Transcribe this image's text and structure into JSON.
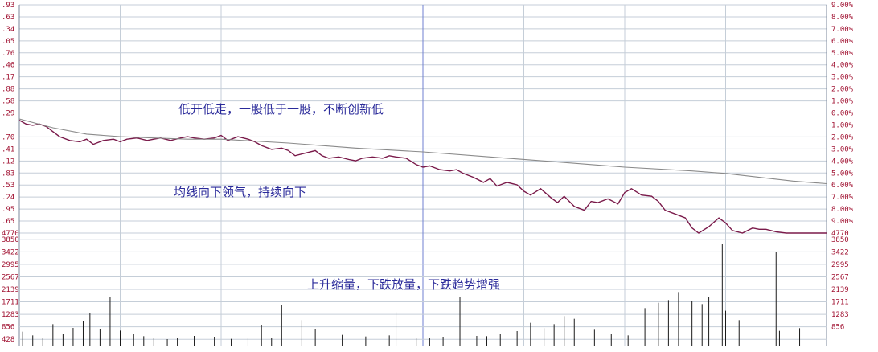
{
  "chart_data": {
    "type": "line",
    "title": "",
    "annotations": [
      "低开低走，一股低于一股，不断创新低",
      "均线向下领气，持续向下",
      "上升缩量，下跌放量，下跌趋势增强"
    ],
    "y_left_ticks": [
      ".93",
      ".63",
      ".34",
      ".05",
      ".76",
      ".46",
      ".17",
      ".88",
      ".58",
      ".29",
      "",
      ".70",
      ".41",
      ".12",
      ".83",
      ".53",
      ".24",
      ".95",
      ".65",
      "4770"
    ],
    "y_right_ticks": [
      "9.00%",
      "8.00%",
      "7.00%",
      "6.00%",
      "5.00%",
      "4.00%",
      "3.00%",
      "2.00%",
      "1.00%",
      "0.00%",
      "1.00%",
      "2.00%",
      "3.00%",
      "4.00%",
      "5.00%",
      "6.00%",
      "7.00%",
      "8.00%",
      "9.00%",
      "4770"
    ],
    "volume_left_ticks": [
      "3850",
      "3422",
      "2995",
      "2567",
      "2139",
      "1711",
      "1283",
      "856",
      "428"
    ],
    "volume_right_ticks": [
      "3850",
      "3422",
      "2995",
      "2567",
      "2139",
      "1711",
      "1283",
      "856"
    ],
    "ylim_percent": [
      -9,
      9
    ],
    "x_range": [
      0,
      240
    ],
    "grid": true,
    "series": [
      {
        "color": "#7a1a4a",
        "x": [
          0,
          2,
          4,
          6,
          8,
          10,
          12,
          15,
          18,
          20,
          22,
          25,
          28,
          30,
          32,
          35,
          38,
          40,
          42,
          45,
          48,
          50,
          52,
          55,
          58,
          60,
          62,
          65,
          68,
          70,
          72,
          75,
          78,
          80,
          82,
          85,
          88,
          90,
          92,
          95,
          98,
          100,
          102,
          105,
          108,
          110,
          112,
          115,
          118,
          120,
          122,
          125,
          128,
          130,
          132,
          135,
          138,
          140,
          142,
          145,
          148,
          150,
          152,
          155,
          158,
          160,
          162,
          165,
          168,
          170,
          172,
          175,
          178,
          180,
          182,
          185,
          188,
          190,
          192,
          195,
          198,
          200,
          202,
          205,
          208,
          210,
          212,
          215,
          218,
          220,
          222,
          225,
          228,
          230,
          240
        ],
        "y": [
          -0.1,
          -0.4,
          -0.5,
          -0.4,
          -0.6,
          -1.0,
          -1.4,
          -1.7,
          -1.8,
          -1.6,
          -2.0,
          -1.7,
          -1.6,
          -1.8,
          -1.6,
          -1.5,
          -1.7,
          -1.6,
          -1.5,
          -1.7,
          -1.5,
          -1.4,
          -1.5,
          -1.6,
          -1.5,
          -1.3,
          -1.7,
          -1.4,
          -1.6,
          -1.8,
          -2.1,
          -2.4,
          -2.3,
          -2.5,
          -2.9,
          -2.7,
          -2.5,
          -2.9,
          -3.1,
          -3.0,
          -3.2,
          -3.3,
          -3.1,
          -3.0,
          -3.1,
          -2.9,
          -3.0,
          -3.1,
          -3.6,
          -3.8,
          -3.7,
          -4.0,
          -4.1,
          -4.0,
          -4.3,
          -4.6,
          -5.0,
          -4.7,
          -5.3,
          -5.0,
          -5.2,
          -5.7,
          -6.0,
          -5.5,
          -6.2,
          -6.6,
          -6.1,
          -6.9,
          -7.2,
          -6.5,
          -6.6,
          -6.3,
          -6.7,
          -5.8,
          -5.5,
          -6.0,
          -6.1,
          -6.5,
          -7.2,
          -7.5,
          -7.8,
          -8.6,
          -9.0,
          -8.5,
          -7.8,
          -8.2,
          -8.8,
          -9.0,
          -8.6,
          -8.7,
          -8.7,
          -8.9,
          -9.3,
          -9.4,
          -9.4
        ]
      },
      {
        "color": "#8a8a8a",
        "x": [
          0,
          10,
          20,
          30,
          40,
          50,
          60,
          80,
          100,
          120,
          140,
          160,
          180,
          200,
          210,
          220,
          230,
          240
        ],
        "y": [
          0.0,
          -0.7,
          -1.2,
          -1.4,
          -1.5,
          -1.6,
          -1.6,
          -1.9,
          -2.3,
          -2.6,
          -3.0,
          -3.4,
          -3.8,
          -4.1,
          -4.3,
          -4.6,
          -4.9,
          -5.1
        ]
      }
    ],
    "volume": {
      "color": "#1a1a1a",
      "x": [
        1,
        4,
        7,
        10,
        13,
        16,
        19,
        21,
        24,
        27,
        30,
        34,
        37,
        40,
        44,
        47,
        52,
        58,
        63,
        68,
        72,
        75,
        78,
        84,
        88,
        96,
        103,
        110,
        112,
        118,
        122,
        126,
        131,
        136,
        139,
        143,
        148,
        152,
        156,
        159,
        162,
        165,
        171,
        176,
        181,
        186,
        190,
        193,
        196,
        200,
        203,
        205,
        209,
        210,
        214,
        225,
        226,
        232
      ],
      "values": [
        520,
        380,
        300,
        800,
        450,
        660,
        900,
        1200,
        620,
        1800,
        560,
        420,
        350,
        300,
        240,
        290,
        360,
        330,
        250,
        270,
        780,
        300,
        1500,
        950,
        620,
        400,
        340,
        380,
        1250,
        280,
        300,
        330,
        1800,
        360,
        350,
        420,
        540,
        850,
        650,
        800,
        1100,
        1000,
        590,
        420,
        380,
        1400,
        1600,
        1700,
        2000,
        1650,
        1550,
        1800,
        3800,
        1300,
        950,
        3500,
        550,
        650
      ],
      "ylim": [
        0,
        4200
      ]
    }
  }
}
